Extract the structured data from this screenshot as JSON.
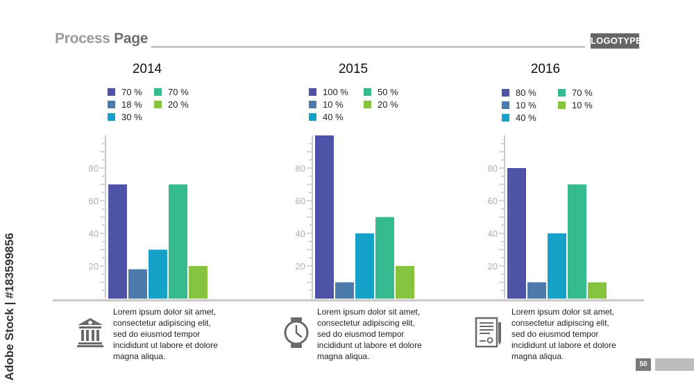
{
  "header": {
    "title_light": "Process ",
    "title_dark": "Page",
    "logo": "LOGOTYPE"
  },
  "watermark": "Adobe Stock | #183599856",
  "page_number": "50",
  "colors": {
    "purple": "#4f53a8",
    "steel": "#4a7bab",
    "cyan": "#16a2c8",
    "teal": "#36ba8f",
    "green": "#86c43e"
  },
  "panels": [
    {
      "year": "2014",
      "legend": [
        "70 %",
        "18 %",
        "30 %",
        "70 %",
        "20 %"
      ],
      "text": [
        "Lorem ipsum dolor sit amet,",
        "consectetur adipiscing elit,",
        "sed do eiusmod tempor",
        "incididunt ut labore et dolore",
        "magna aliqua."
      ],
      "icon": "bank-icon"
    },
    {
      "year": "2015",
      "legend": [
        "100 %",
        "10 %",
        "40 %",
        "50 %",
        "20 %"
      ],
      "text": [
        "Lorem ipsum dolor sit amet,",
        "consectetur adipiscing elit,",
        "sed do eiusmod tempor",
        "incididunt ut labore et dolore",
        "magna aliqua."
      ],
      "icon": "clock-icon"
    },
    {
      "year": "2016",
      "legend": [
        "80 %",
        "10 %",
        "40 %",
        "70 %",
        "10 %"
      ],
      "text": [
        "Lorem ipsum dolor sit amet,",
        "consectetur adipiscing elit,",
        "sed do eiusmod tempor",
        "incididunt ut labore et dolore",
        "magna aliqua."
      ],
      "icon": "contract-icon"
    }
  ],
  "chart_data": [
    {
      "type": "bar",
      "title": "2014",
      "yticks": [
        20,
        40,
        60,
        80
      ],
      "ylim": [
        0,
        100
      ],
      "grid": false,
      "values": [
        70,
        18,
        30,
        70,
        20
      ]
    },
    {
      "type": "bar",
      "title": "2015",
      "yticks": [
        20,
        40,
        60,
        80
      ],
      "ylim": [
        0,
        100
      ],
      "grid": false,
      "values": [
        100,
        10,
        40,
        50,
        20
      ]
    },
    {
      "type": "bar",
      "title": "2016",
      "yticks": [
        20,
        40,
        60,
        80
      ],
      "ylim": [
        0,
        100
      ],
      "grid": false,
      "values": [
        80,
        10,
        40,
        70,
        10
      ]
    }
  ]
}
